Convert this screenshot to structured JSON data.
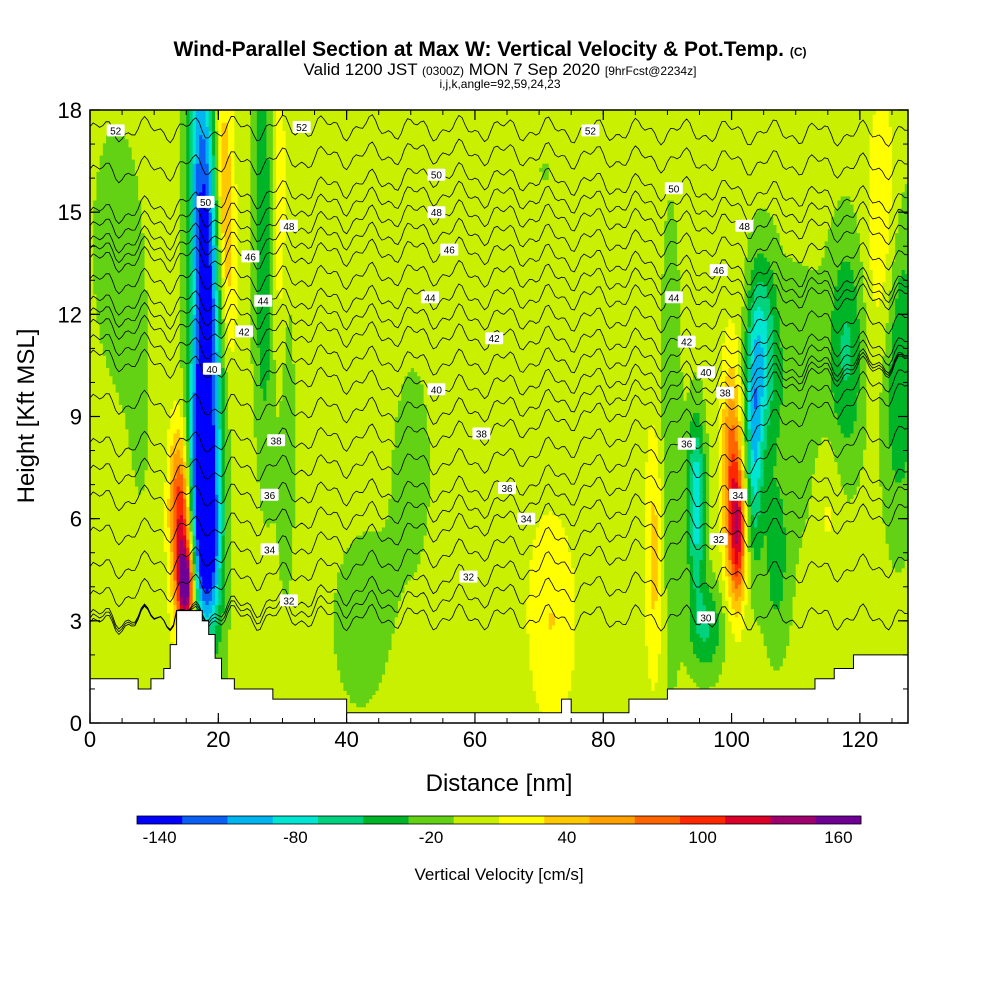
{
  "chart_data": {
    "type": "heatmap",
    "title": "Wind-Parallel Section at Max W: Vertical Velocity & Pot.Temp.",
    "title_unit": "(C)",
    "subtitle": {
      "valid": "Valid 1200 JST",
      "utc": "(0300Z)",
      "date": "MON 7 Sep 2020",
      "forecast": "[9hrFcst@2234z]"
    },
    "indices": "i,j,k,angle=92,59,24,23",
    "xlabel": "Distance [nm]",
    "ylabel": "Height [Kft MSL]",
    "xlim": [
      0,
      127.5
    ],
    "ylim": [
      0,
      18
    ],
    "x_ticks": [
      "0",
      "20",
      "40",
      "60",
      "80",
      "100",
      "120"
    ],
    "y_ticks": [
      "0",
      "3",
      "6",
      "9",
      "12",
      "15",
      "18"
    ],
    "colorbar": {
      "label": "Vertical Velocity [cm/s]",
      "tick_labels": [
        "-140",
        "-80",
        "-20",
        "40",
        "100",
        "160"
      ],
      "tick_values": [
        -140,
        -80,
        -20,
        40,
        100,
        160
      ],
      "range": [
        -150,
        170
      ],
      "step": 20,
      "colors": [
        "#0000ff",
        "#0a5ff5",
        "#00b4f0",
        "#00e6d2",
        "#00d27d",
        "#00b428",
        "#64d214",
        "#c8f000",
        "#ffff00",
        "#ffc800",
        "#ffa000",
        "#ff6400",
        "#ff2800",
        "#dc0028",
        "#a0006e",
        "#6e0096"
      ]
    },
    "isentrope_labels": [
      {
        "text": "52",
        "x": 4,
        "y": 17.4
      },
      {
        "text": "52",
        "x": 33,
        "y": 17.5
      },
      {
        "text": "52",
        "x": 78,
        "y": 17.4
      },
      {
        "text": "50",
        "x": 18,
        "y": 15.3
      },
      {
        "text": "50",
        "x": 54,
        "y": 16.1
      },
      {
        "text": "50",
        "x": 91,
        "y": 15.7
      },
      {
        "text": "48",
        "x": 31,
        "y": 14.6
      },
      {
        "text": "48",
        "x": 54,
        "y": 15
      },
      {
        "text": "48",
        "x": 102,
        "y": 14.6
      },
      {
        "text": "46",
        "x": 25,
        "y": 13.7
      },
      {
        "text": "46",
        "x": 56,
        "y": 13.9
      },
      {
        "text": "46",
        "x": 98,
        "y": 13.3
      },
      {
        "text": "44",
        "x": 27,
        "y": 12.4
      },
      {
        "text": "44",
        "x": 53,
        "y": 12.5
      },
      {
        "text": "44",
        "x": 91,
        "y": 12.5
      },
      {
        "text": "42",
        "x": 24,
        "y": 11.5
      },
      {
        "text": "42",
        "x": 63,
        "y": 11.3
      },
      {
        "text": "42",
        "x": 93,
        "y": 11.2
      },
      {
        "text": "40",
        "x": 19,
        "y": 10.4
      },
      {
        "text": "40",
        "x": 54,
        "y": 9.8
      },
      {
        "text": "40",
        "x": 96,
        "y": 10.3
      },
      {
        "text": "38",
        "x": 29,
        "y": 8.3
      },
      {
        "text": "38",
        "x": 61,
        "y": 8.5
      },
      {
        "text": "38",
        "x": 99,
        "y": 9.7
      },
      {
        "text": "36",
        "x": 28,
        "y": 6.7
      },
      {
        "text": "36",
        "x": 65,
        "y": 6.9
      },
      {
        "text": "36",
        "x": 93,
        "y": 8.2
      },
      {
        "text": "34",
        "x": 28,
        "y": 5.1
      },
      {
        "text": "34",
        "x": 68,
        "y": 6
      },
      {
        "text": "34",
        "x": 101,
        "y": 6.7
      },
      {
        "text": "32",
        "x": 31,
        "y": 3.6
      },
      {
        "text": "32",
        "x": 59,
        "y": 4.3
      },
      {
        "text": "32",
        "x": 98,
        "y": 5.4
      },
      {
        "text": "30",
        "x": 96,
        "y": 3.1
      }
    ],
    "terrain": [
      [
        0,
        1.3
      ],
      [
        7.5,
        1.3
      ],
      [
        7.5,
        1
      ],
      [
        9.5,
        1
      ],
      [
        9.5,
        1.3
      ],
      [
        11.5,
        1.3
      ],
      [
        11.5,
        1.6
      ],
      [
        12.5,
        1.6
      ],
      [
        12.5,
        2.3
      ],
      [
        13.5,
        2.3
      ],
      [
        13.5,
        3.3
      ],
      [
        17.5,
        3.3
      ],
      [
        17.5,
        3
      ],
      [
        18.5,
        3
      ],
      [
        18.5,
        2.6
      ],
      [
        19.5,
        2.6
      ],
      [
        19.5,
        1.9
      ],
      [
        20.5,
        1.9
      ],
      [
        20.5,
        1.3
      ],
      [
        22.5,
        1.3
      ],
      [
        22.5,
        1
      ],
      [
        28.5,
        1
      ],
      [
        28.5,
        0.7
      ],
      [
        40,
        0.7
      ],
      [
        40,
        0.3
      ],
      [
        73.5,
        0.3
      ],
      [
        73.5,
        0.7
      ],
      [
        75,
        0.7
      ],
      [
        75,
        0.3
      ],
      [
        84,
        0.3
      ],
      [
        84,
        0.7
      ],
      [
        90,
        0.7
      ],
      [
        90,
        1
      ],
      [
        113,
        1
      ],
      [
        113,
        1.3
      ],
      [
        116,
        1.3
      ],
      [
        116,
        1.6
      ],
      [
        119,
        1.6
      ],
      [
        119,
        2
      ],
      [
        127.5,
        2
      ]
    ],
    "w_features": [
      {
        "x": 18,
        "y": 13,
        "sx": 1.6,
        "sy": 5.5,
        "tilt": -0.14,
        "w": -150
      },
      {
        "x": 17,
        "y": 7,
        "sx": 1.4,
        "sy": 2.5,
        "tilt": -0.05,
        "w": -130
      },
      {
        "x": 18.5,
        "y": 5,
        "sx": 1.2,
        "sy": 1.5,
        "tilt": 0,
        "w": -80
      },
      {
        "x": 21,
        "y": 15,
        "sx": 1.0,
        "sy": 3.0,
        "tilt": -0.1,
        "w": 60
      },
      {
        "x": 14.5,
        "y": 5.5,
        "sx": 1.2,
        "sy": 1.8,
        "tilt": 0.05,
        "w": 110
      },
      {
        "x": 15,
        "y": 4,
        "sx": 0.8,
        "sy": 0.8,
        "tilt": 0,
        "w": 140
      },
      {
        "x": 13.5,
        "y": 7,
        "sx": 1.0,
        "sy": 1.5,
        "tilt": 0.05,
        "w": 40
      },
      {
        "x": 27,
        "y": 14,
        "sx": 1.2,
        "sy": 4.5,
        "tilt": -0.05,
        "w": -50
      },
      {
        "x": 29.5,
        "y": 14,
        "sx": 0.8,
        "sy": 3.5,
        "tilt": 0,
        "w": 30
      },
      {
        "x": 30.5,
        "y": 9,
        "sx": 1.2,
        "sy": 4.0,
        "tilt": 0,
        "w": -25
      },
      {
        "x": 50,
        "y": 8,
        "sx": 4.0,
        "sy": 4.0,
        "tilt": 0,
        "w": -15
      },
      {
        "x": 42,
        "y": 3,
        "sx": 3.0,
        "sy": 1.8,
        "tilt": 0,
        "w": -25
      },
      {
        "x": 72,
        "y": 3,
        "sx": 2.5,
        "sy": 2.0,
        "tilt": 0,
        "w": 30
      },
      {
        "x": 64,
        "y": 11,
        "sx": 6.0,
        "sy": 3.5,
        "tilt": 0,
        "w": 10
      },
      {
        "x": 40,
        "y": 13,
        "sx": 6.0,
        "sy": 3.5,
        "tilt": 0,
        "w": 10
      },
      {
        "x": 70,
        "y": 16,
        "sx": 6.0,
        "sy": 2.0,
        "tilt": 0,
        "w": -12
      },
      {
        "x": 88,
        "y": 5,
        "sx": 1.0,
        "sy": 2.5,
        "tilt": 0,
        "w": 40
      },
      {
        "x": 90.5,
        "y": 8,
        "sx": 1.2,
        "sy": 5.0,
        "tilt": 0,
        "w": -30
      },
      {
        "x": 94.5,
        "y": 6.5,
        "sx": 1.0,
        "sy": 1.8,
        "tilt": 0,
        "w": -90
      },
      {
        "x": 96,
        "y": 2.8,
        "sx": 2.0,
        "sy": 1.0,
        "tilt": 0,
        "w": -50
      },
      {
        "x": 100,
        "y": 7.5,
        "sx": 1.1,
        "sy": 2.2,
        "tilt": 0,
        "w": 80
      },
      {
        "x": 101,
        "y": 5.5,
        "sx": 0.9,
        "sy": 1.4,
        "tilt": 0,
        "w": 100
      },
      {
        "x": 103.5,
        "y": 8.5,
        "sx": 1.0,
        "sy": 2.5,
        "tilt": 0,
        "w": -80
      },
      {
        "x": 105,
        "y": 11,
        "sx": 1.5,
        "sy": 2.0,
        "tilt": 0,
        "w": -60
      },
      {
        "x": 110,
        "y": 9.5,
        "sx": 4.0,
        "sy": 3.0,
        "tilt": 0,
        "w": -25
      },
      {
        "x": 118,
        "y": 11,
        "sx": 2.0,
        "sy": 2.5,
        "tilt": 0,
        "w": -50
      },
      {
        "x": 124,
        "y": 14,
        "sx": 2.0,
        "sy": 3.0,
        "tilt": 0,
        "w": 40
      },
      {
        "x": 115,
        "y": 6.5,
        "sx": 1.5,
        "sy": 1.5,
        "tilt": 0,
        "w": 20
      },
      {
        "x": 107,
        "y": 4.5,
        "sx": 1.5,
        "sy": 1.8,
        "tilt": 0,
        "w": -35
      },
      {
        "x": 126,
        "y": 11,
        "sx": 2.0,
        "sy": 3.5,
        "tilt": 0,
        "w": -60
      },
      {
        "x": 4,
        "y": 14,
        "sx": 3.0,
        "sy": 3.0,
        "tilt": 0,
        "w": -20
      },
      {
        "x": 8,
        "y": 8,
        "sx": 2.5,
        "sy": 4.0,
        "tilt": 0,
        "w": -10
      }
    ]
  }
}
